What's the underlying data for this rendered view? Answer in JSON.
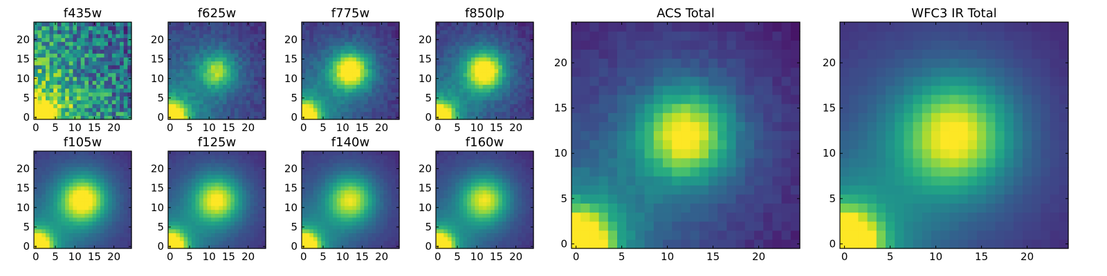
{
  "chart_data": {
    "type": "heatmap",
    "colormap": "viridis",
    "grid_size": 25,
    "vmin": 0,
    "vmax": 1,
    "panels": [
      {
        "id": "f435w",
        "title": "f435w",
        "size": "small",
        "row": 0,
        "col": 0,
        "xticks": [
          0,
          5,
          10,
          15,
          20
        ],
        "yticks": [
          0,
          5,
          10,
          15,
          20
        ],
        "center": 0.0,
        "corner": 1.0,
        "background": 0.55,
        "noise": 0.28,
        "galaxy_width": 3.0
      },
      {
        "id": "f625w",
        "title": "f625w",
        "size": "small",
        "row": 0,
        "col": 1,
        "xticks": [
          0,
          5,
          10,
          15,
          20
        ],
        "yticks": [
          0,
          5,
          10,
          15,
          20
        ],
        "center": 0.52,
        "corner": 1.0,
        "background": 0.2,
        "noise": 0.06,
        "galaxy_width": 3.0
      },
      {
        "id": "f775w",
        "title": "f775w",
        "size": "small",
        "row": 0,
        "col": 2,
        "xticks": [
          0,
          5,
          10,
          15,
          20
        ],
        "yticks": [
          0,
          5,
          10,
          15,
          20
        ],
        "center": 0.78,
        "corner": 1.0,
        "background": 0.14,
        "noise": 0.05,
        "galaxy_width": 3.2
      },
      {
        "id": "f850lp",
        "title": "f850lp",
        "size": "small",
        "row": 0,
        "col": 3,
        "xticks": [
          0,
          5,
          10,
          15,
          20
        ],
        "yticks": [
          0,
          5,
          10,
          15,
          20
        ],
        "center": 0.8,
        "corner": 1.0,
        "background": 0.14,
        "noise": 0.05,
        "galaxy_width": 3.2
      },
      {
        "id": "f105w",
        "title": "f105w",
        "size": "small",
        "row": 1,
        "col": 0,
        "xticks": [
          0,
          5,
          10,
          15,
          20
        ],
        "yticks": [
          0,
          5,
          10,
          15,
          20
        ],
        "center": 0.76,
        "corner": 1.0,
        "background": 0.12,
        "noise": 0.015,
        "galaxy_width": 4.0
      },
      {
        "id": "f125w",
        "title": "f125w",
        "size": "small",
        "row": 1,
        "col": 1,
        "xticks": [
          0,
          5,
          10,
          15,
          20
        ],
        "yticks": [
          0,
          5,
          10,
          15,
          20
        ],
        "center": 0.68,
        "corner": 1.0,
        "background": 0.12,
        "noise": 0.015,
        "galaxy_width": 4.0
      },
      {
        "id": "f140w",
        "title": "f140w",
        "size": "small",
        "row": 1,
        "col": 2,
        "xticks": [
          0,
          5,
          10,
          15,
          20
        ],
        "yticks": [
          0,
          5,
          10,
          15,
          20
        ],
        "center": 0.64,
        "corner": 1.0,
        "background": 0.12,
        "noise": 0.015,
        "galaxy_width": 4.0
      },
      {
        "id": "f160w",
        "title": "f160w",
        "size": "small",
        "row": 1,
        "col": 3,
        "xticks": [
          0,
          5,
          10,
          15,
          20
        ],
        "yticks": [
          0,
          5,
          10,
          15,
          20
        ],
        "center": 0.64,
        "corner": 1.0,
        "background": 0.12,
        "noise": 0.015,
        "galaxy_width": 4.0
      },
      {
        "id": "acs-total",
        "title": "ACS Total",
        "size": "large",
        "row": 0,
        "col": 4,
        "xticks": [
          0,
          5,
          10,
          15,
          20
        ],
        "yticks": [
          0,
          5,
          10,
          15,
          20
        ],
        "center": 0.72,
        "corner": 1.0,
        "background": 0.1,
        "noise": 0.035,
        "galaxy_width": 3.2
      },
      {
        "id": "wfc3-ir-total",
        "title": "WFC3 IR Total",
        "size": "large",
        "row": 0,
        "col": 5,
        "xticks": [
          0,
          5,
          10,
          15,
          20
        ],
        "yticks": [
          0,
          5,
          10,
          15,
          20
        ],
        "center": 0.7,
        "corner": 1.0,
        "background": 0.1,
        "noise": 0.01,
        "galaxy_width": 4.0
      }
    ]
  }
}
